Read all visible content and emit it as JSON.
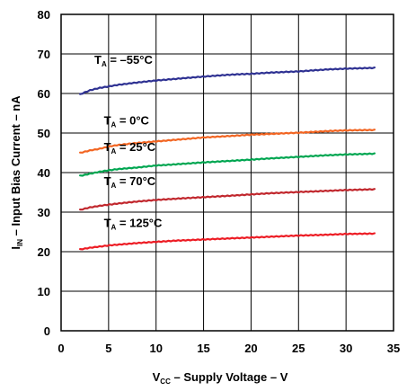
{
  "chart_data": {
    "type": "line",
    "title": "",
    "xlabel": {
      "main": "V",
      "sub": "CC",
      "rest": " – Supply Voltage – V"
    },
    "ylabel": {
      "main": "I",
      "sub": "IN",
      "rest": " – Input Bias Current – nA"
    },
    "xlim": [
      0,
      35
    ],
    "ylim": [
      0,
      80
    ],
    "x_ticks": [
      0,
      5,
      10,
      15,
      20,
      25,
      30,
      35
    ],
    "y_ticks": [
      0,
      10,
      20,
      30,
      40,
      50,
      60,
      70,
      80
    ],
    "grid": true,
    "series": [
      {
        "name": {
          "main": "T",
          "sub": "A",
          "rest": " = –55°C"
        },
        "color": "#2e3192",
        "label_pos": [
          3.5,
          67.5
        ],
        "x": [
          2,
          3,
          4,
          5,
          6,
          8,
          10,
          12,
          15,
          18,
          20,
          22,
          25,
          28,
          30,
          33
        ],
        "y": [
          59.8,
          60.8,
          61.4,
          61.8,
          62.2,
          62.8,
          63.3,
          63.7,
          64.3,
          64.8,
          65.0,
          65.3,
          65.6,
          66.1,
          66.3,
          66.5
        ]
      },
      {
        "name": {
          "main": "T",
          "sub": "A",
          "rest": " = 0°C"
        },
        "color": "#f26522",
        "label_pos": [
          4.5,
          52.2
        ],
        "x": [
          2,
          3,
          4,
          5,
          6,
          8,
          10,
          12,
          15,
          18,
          20,
          22,
          25,
          28,
          30,
          33
        ],
        "y": [
          45.0,
          45.6,
          46.0,
          46.6,
          47.0,
          47.5,
          47.9,
          48.3,
          48.9,
          49.3,
          49.6,
          49.8,
          50.1,
          50.5,
          50.7,
          50.8
        ]
      },
      {
        "name": {
          "main": "T",
          "sub": "A",
          "rest": " = 25°C"
        },
        "color": "#00a651",
        "label_pos": [
          4.5,
          45.5
        ],
        "x": [
          2,
          3,
          4,
          5,
          6,
          8,
          10,
          12,
          15,
          18,
          20,
          22,
          25,
          28,
          30,
          33
        ],
        "y": [
          39.2,
          39.7,
          40.2,
          40.6,
          40.9,
          41.3,
          41.8,
          42.1,
          42.6,
          43.0,
          43.3,
          43.6,
          44.0,
          44.4,
          44.6,
          44.8
        ]
      },
      {
        "name": {
          "main": "T",
          "sub": "A",
          "rest": " = 70°C"
        },
        "color": "#c1272d",
        "label_pos": [
          4.5,
          36.8
        ],
        "x": [
          2,
          3,
          4,
          5,
          6,
          8,
          10,
          12,
          15,
          18,
          20,
          22,
          25,
          28,
          30,
          33
        ],
        "y": [
          30.6,
          31.2,
          31.6,
          31.9,
          32.2,
          32.7,
          33.1,
          33.4,
          33.8,
          34.2,
          34.5,
          34.8,
          35.1,
          35.4,
          35.6,
          35.8
        ]
      },
      {
        "name": {
          "main": "T",
          "sub": "A",
          "rest": " = 125°C"
        },
        "color": "#ed1c24",
        "label_pos": [
          4.5,
          26.2
        ],
        "x": [
          2,
          3,
          4,
          5,
          6,
          8,
          10,
          12,
          15,
          18,
          20,
          22,
          25,
          28,
          30,
          33
        ],
        "y": [
          20.6,
          21.0,
          21.3,
          21.6,
          21.8,
          22.2,
          22.5,
          22.8,
          23.1,
          23.4,
          23.6,
          23.8,
          24.1,
          24.3,
          24.5,
          24.6
        ]
      }
    ]
  }
}
